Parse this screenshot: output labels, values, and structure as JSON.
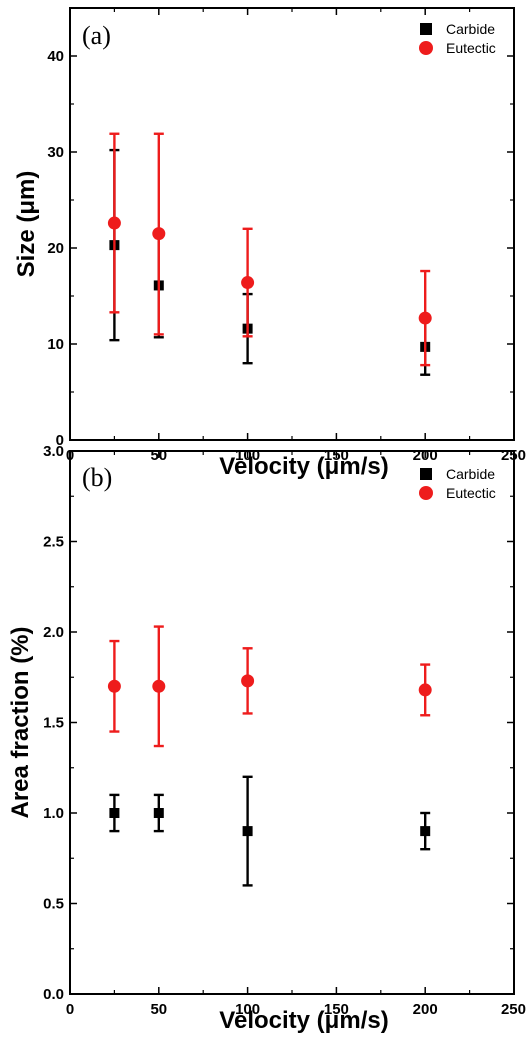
{
  "chart_data": [
    {
      "type": "scatter",
      "panel_label": "(a)",
      "xlabel": "Velocity (μm/s)",
      "ylabel": "Size (μm)",
      "xlim": [
        0,
        250
      ],
      "ylim": [
        0,
        45
      ],
      "xticks": [
        0,
        50,
        100,
        150,
        200,
        250
      ],
      "xtick_labels": [
        "0",
        "50",
        "100",
        "150",
        "200",
        "250"
      ],
      "yticks": [
        0,
        10,
        20,
        30,
        40
      ],
      "ytick_labels": [
        "0",
        "10",
        "20",
        "30",
        "40"
      ],
      "legend_position": "top-right",
      "grid": false,
      "series": [
        {
          "name": "Carbide",
          "marker": "square",
          "color": "#000000",
          "x": [
            25,
            50,
            100,
            200
          ],
          "y": [
            20.3,
            16.1,
            11.6,
            9.7
          ],
          "err_low": [
            10.4,
            10.7,
            8.0,
            6.8
          ],
          "err_high": [
            30.2,
            21.5,
            15.2,
            12.6
          ]
        },
        {
          "name": "Eutectic",
          "marker": "circle",
          "color": "#ee1c1c",
          "x": [
            25,
            50,
            100,
            200
          ],
          "y": [
            22.6,
            21.5,
            16.4,
            12.7
          ],
          "err_low": [
            13.3,
            11.0,
            10.8,
            7.8
          ],
          "err_high": [
            31.9,
            31.9,
            22.0,
            17.6
          ]
        }
      ]
    },
    {
      "type": "scatter",
      "panel_label": "(b)",
      "xlabel": "Velocity (μm/s)",
      "ylabel": "Area fraction (%)",
      "xlim": [
        0,
        250
      ],
      "ylim": [
        0,
        3.0
      ],
      "xticks": [
        0,
        50,
        100,
        150,
        200,
        250
      ],
      "xtick_labels": [
        "0",
        "50",
        "100",
        "150",
        "200",
        "250"
      ],
      "yticks": [
        0,
        0.5,
        1.0,
        1.5,
        2.0,
        2.5,
        3.0
      ],
      "ytick_labels": [
        "0.0",
        "0.5",
        "1.0",
        "1.5",
        "2.0",
        "2.5",
        "3.0"
      ],
      "legend_position": "top-right",
      "grid": false,
      "series": [
        {
          "name": "Carbide",
          "marker": "square",
          "color": "#000000",
          "x": [
            25,
            50,
            100,
            200
          ],
          "y": [
            1.0,
            1.0,
            0.9,
            0.9
          ],
          "err_low": [
            0.9,
            0.9,
            0.6,
            0.8
          ],
          "err_high": [
            1.1,
            1.1,
            1.2,
            1.0
          ]
        },
        {
          "name": "Eutectic",
          "marker": "circle",
          "color": "#ee1c1c",
          "x": [
            25,
            50,
            100,
            200
          ],
          "y": [
            1.7,
            1.7,
            1.73,
            1.68
          ],
          "err_low": [
            1.45,
            1.37,
            1.55,
            1.54
          ],
          "err_high": [
            1.95,
            2.03,
            1.91,
            1.82
          ]
        }
      ]
    }
  ]
}
